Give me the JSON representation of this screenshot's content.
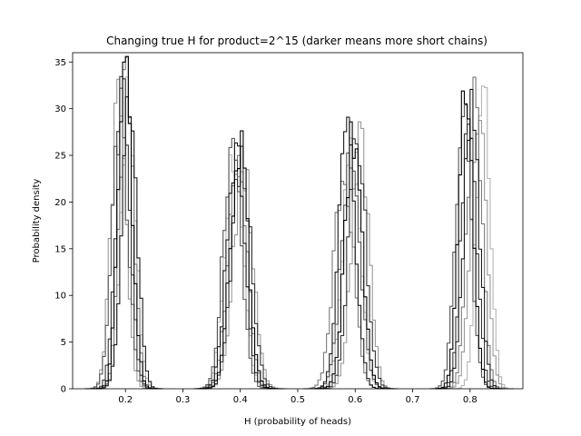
{
  "chart_data": {
    "type": "histogram-step",
    "title": "Changing true H for product=2^15 (darker means more short chains)",
    "xlabel": "H (probability of heads)",
    "ylabel": "Probability density",
    "xlim": [
      0.108,
      0.892
    ],
    "ylim": [
      0,
      36
    ],
    "x_ticks": [
      "0.2",
      "0.3",
      "0.4",
      "0.5",
      "0.6",
      "0.7",
      "0.8"
    ],
    "y_ticks": [
      "0",
      "5",
      "10",
      "15",
      "20",
      "25",
      "30",
      "35"
    ],
    "bin_width": 0.005,
    "grid": false,
    "legend": "none",
    "groups": [
      {
        "true_h": 0.2,
        "series": [
          {
            "center": 0.2,
            "peak": 32.8,
            "sd": 0.0122,
            "color": "#000000"
          },
          {
            "center": 0.207,
            "peak": 30.5,
            "sd": 0.013,
            "color": "#1a1a1a"
          },
          {
            "center": 0.196,
            "peak": 32.0,
            "sd": 0.0125,
            "color": "#333333"
          },
          {
            "center": 0.191,
            "peak": 29.0,
            "sd": 0.0137,
            "color": "#555555"
          },
          {
            "center": 0.202,
            "peak": 32.8,
            "sd": 0.0121,
            "color": "#7a7a7a"
          },
          {
            "center": 0.188,
            "peak": 31.0,
            "sd": 0.0128,
            "color": "#9a9a9a"
          },
          {
            "center": 0.205,
            "peak": 31.5,
            "sd": 0.0126,
            "color": "#b5b5b5"
          }
        ]
      },
      {
        "true_h": 0.4,
        "series": [
          {
            "center": 0.398,
            "peak": 26.0,
            "sd": 0.0153,
            "color": "#000000"
          },
          {
            "center": 0.392,
            "peak": 25.5,
            "sd": 0.0156,
            "color": "#1a1a1a"
          },
          {
            "center": 0.402,
            "peak": 24.5,
            "sd": 0.0163,
            "color": "#333333"
          },
          {
            "center": 0.386,
            "peak": 25.8,
            "sd": 0.0155,
            "color": "#555555"
          },
          {
            "center": 0.395,
            "peak": 25.0,
            "sd": 0.016,
            "color": "#7a7a7a"
          },
          {
            "center": 0.405,
            "peak": 23.8,
            "sd": 0.0168,
            "color": "#9a9a9a"
          },
          {
            "center": 0.389,
            "peak": 24.8,
            "sd": 0.0161,
            "color": "#b5b5b5"
          }
        ]
      },
      {
        "true_h": 0.6,
        "series": [
          {
            "center": 0.597,
            "peak": 27.0,
            "sd": 0.0148,
            "color": "#000000"
          },
          {
            "center": 0.586,
            "peak": 27.8,
            "sd": 0.0144,
            "color": "#1a1a1a"
          },
          {
            "center": 0.604,
            "peak": 26.5,
            "sd": 0.0151,
            "color": "#333333"
          },
          {
            "center": 0.592,
            "peak": 25.0,
            "sd": 0.016,
            "color": "#555555"
          },
          {
            "center": 0.58,
            "peak": 24.0,
            "sd": 0.0166,
            "color": "#7a7a7a"
          },
          {
            "center": 0.609,
            "peak": 27.0,
            "sd": 0.0148,
            "color": "#9a9a9a"
          },
          {
            "center": 0.594,
            "peak": 26.8,
            "sd": 0.0149,
            "color": "#b5b5b5"
          }
        ]
      },
      {
        "true_h": 0.8,
        "series": [
          {
            "center": 0.793,
            "peak": 32.0,
            "sd": 0.0125,
            "color": "#000000"
          },
          {
            "center": 0.803,
            "peak": 30.5,
            "sd": 0.0131,
            "color": "#1a1a1a"
          },
          {
            "center": 0.798,
            "peak": 31.5,
            "sd": 0.0127,
            "color": "#333333"
          },
          {
            "center": 0.788,
            "peak": 29.5,
            "sd": 0.0135,
            "color": "#555555"
          },
          {
            "center": 0.808,
            "peak": 31.0,
            "sd": 0.0129,
            "color": "#7a7a7a"
          },
          {
            "center": 0.815,
            "peak": 30.0,
            "sd": 0.0133,
            "color": "#9a9a9a"
          },
          {
            "center": 0.823,
            "peak": 34.3,
            "sd": 0.0116,
            "color": "#b5b5b5"
          }
        ]
      }
    ]
  }
}
